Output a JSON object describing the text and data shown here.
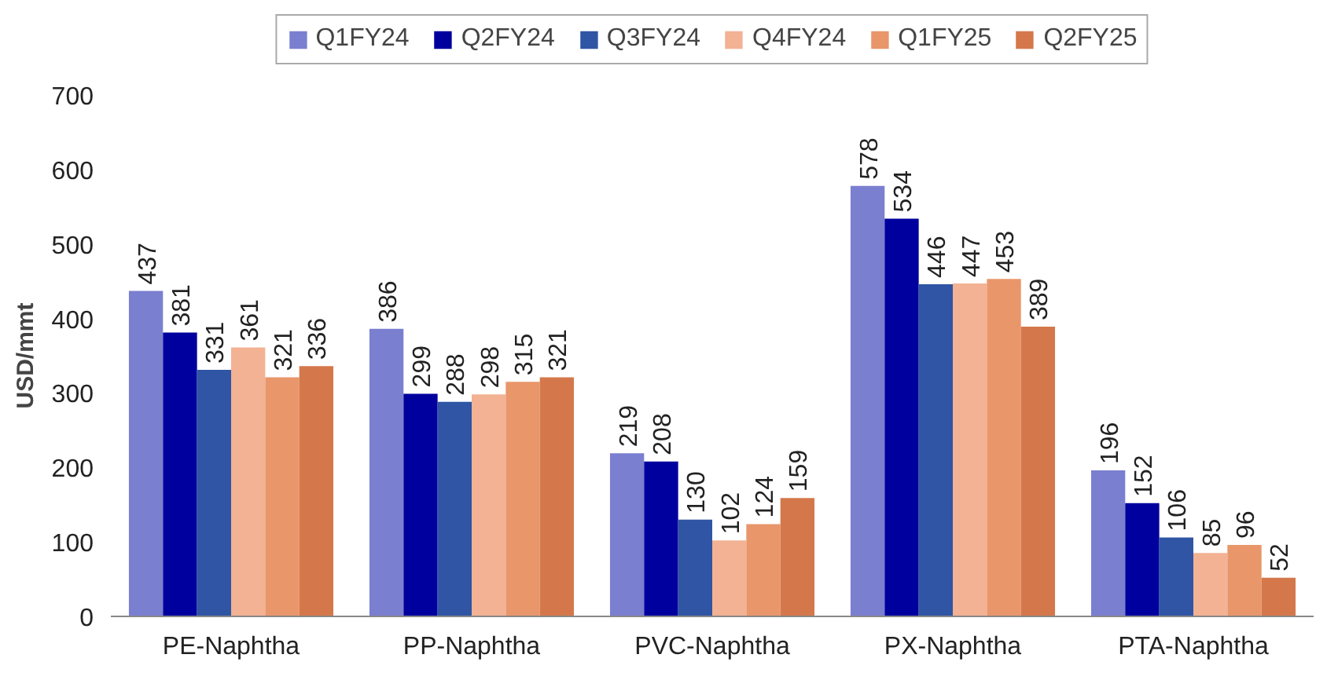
{
  "chart_data": {
    "type": "bar",
    "ylabel": "USD/mmt",
    "categories": [
      "PE-Naphtha",
      "PP-Naphtha",
      "PVC-Naphtha",
      "PX-Naphtha",
      "PTA-Naphtha"
    ],
    "series": [
      {
        "name": "Q1FY24",
        "color": "#7b7fd0",
        "values": [
          437,
          386,
          219,
          578,
          196
        ]
      },
      {
        "name": "Q2FY24",
        "color": "#00009e",
        "values": [
          381,
          299,
          208,
          534,
          152
        ]
      },
      {
        "name": "Q3FY24",
        "color": "#2f55a4",
        "values": [
          331,
          288,
          130,
          446,
          106
        ]
      },
      {
        "name": "Q4FY24",
        "color": "#f2b293",
        "values": [
          361,
          298,
          102,
          447,
          85
        ]
      },
      {
        "name": "Q1FY25",
        "color": "#e9966b",
        "values": [
          321,
          315,
          124,
          453,
          96
        ]
      },
      {
        "name": "Q2FY25",
        "color": "#d4784b",
        "values": [
          336,
          321,
          159,
          389,
          52
        ]
      }
    ],
    "ylim": [
      0,
      700
    ],
    "yticks": [
      0,
      100,
      200,
      300,
      400,
      500,
      600,
      700
    ],
    "grid": false,
    "legend": "top",
    "data_labels": true
  }
}
